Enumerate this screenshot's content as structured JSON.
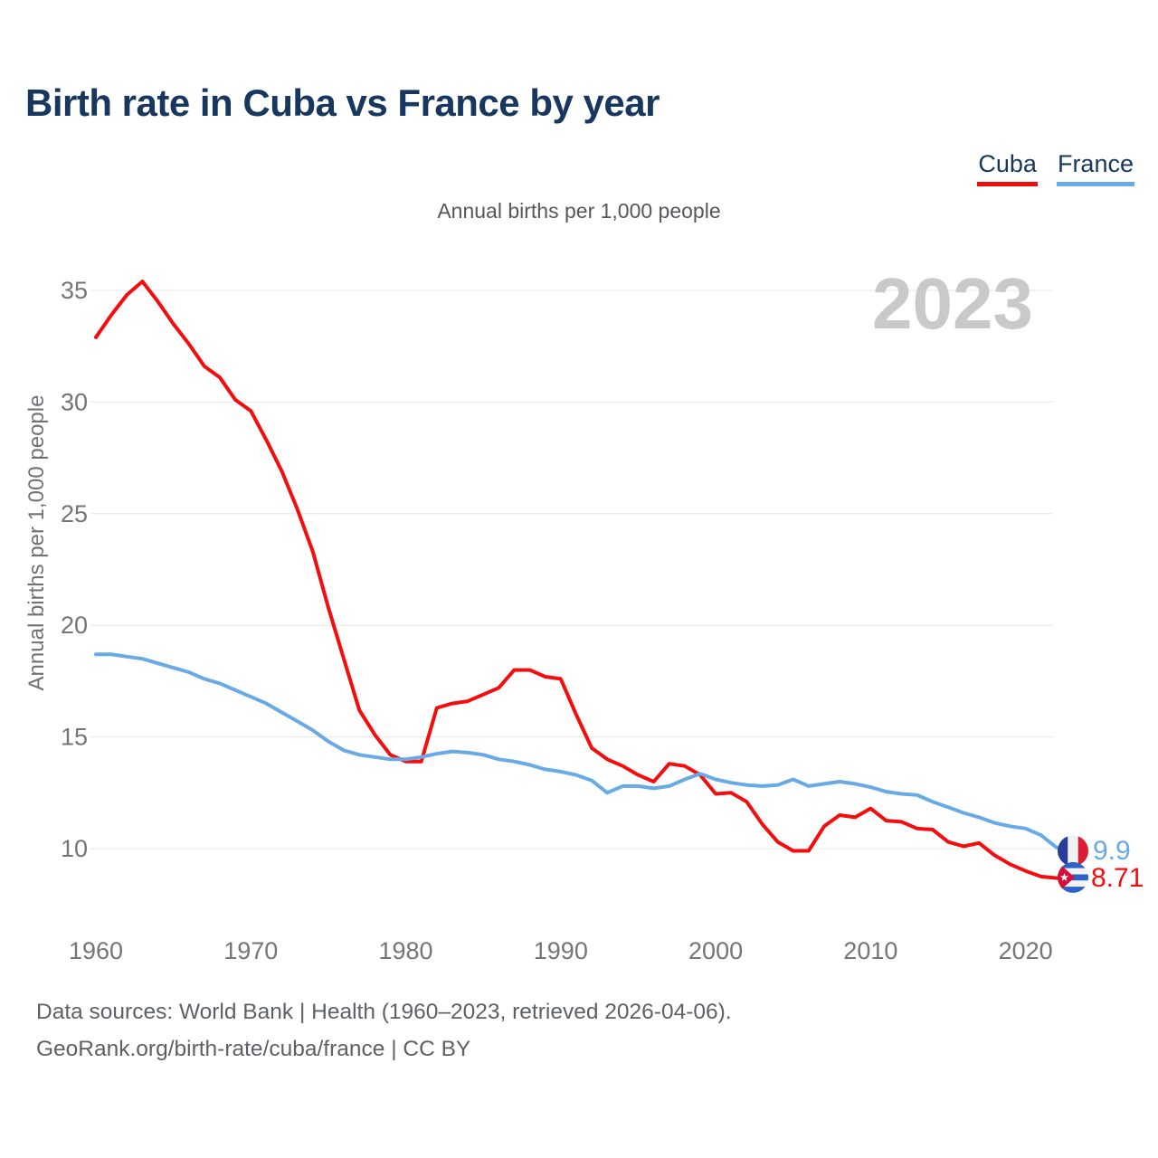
{
  "header": {
    "title": "Birth rate in Cuba vs France by year",
    "subtitle": "Annual births per 1,000 people"
  },
  "legend": {
    "items": [
      {
        "label": "Cuba",
        "color": "#f50d0d"
      },
      {
        "label": "France",
        "color": "#68aae6"
      }
    ]
  },
  "chart_data": {
    "type": "line",
    "title": "Birth rate in Cuba vs France by year",
    "subtitle": "Annual births per 1,000 people",
    "xlabel": "",
    "ylabel": "Annual births per 1,000 people",
    "watermark": "2023",
    "grid": "horizontal",
    "legend_position": "top-right",
    "xlim": [
      1960,
      2023
    ],
    "ylim": [
      8.5,
      36
    ],
    "x_ticks": [
      "1960",
      "1970",
      "1980",
      "1990",
      "2000",
      "2010",
      "2020"
    ],
    "y_ticks": [
      35,
      30,
      25,
      20,
      15,
      10
    ],
    "years": [
      1960,
      1961,
      1962,
      1963,
      1964,
      1965,
      1966,
      1967,
      1968,
      1969,
      1970,
      1971,
      1972,
      1973,
      1974,
      1975,
      1976,
      1977,
      1978,
      1979,
      1980,
      1981,
      1982,
      1983,
      1984,
      1985,
      1986,
      1987,
      1988,
      1989,
      1990,
      1991,
      1992,
      1993,
      1994,
      1995,
      1996,
      1997,
      1998,
      1999,
      2000,
      2001,
      2002,
      2003,
      2004,
      2005,
      2006,
      2007,
      2008,
      2009,
      2010,
      2011,
      2012,
      2013,
      2014,
      2015,
      2016,
      2017,
      2018,
      2019,
      2020,
      2021,
      2022,
      2023
    ],
    "series": [
      {
        "name": "Cuba",
        "color": "#f50d0d",
        "end_label": "8.71",
        "flag_icon": "cuba-flag-icon",
        "values": [
          32.9,
          33.9,
          34.8,
          35.4,
          34.5,
          33.5,
          32.6,
          31.6,
          31.1,
          30.1,
          29.6,
          28.3,
          26.9,
          25.2,
          23.3,
          20.8,
          18.5,
          16.2,
          15.1,
          14.2,
          13.9,
          13.9,
          16.3,
          16.5,
          16.6,
          16.9,
          17.2,
          18.0,
          18.0,
          17.7,
          17.6,
          16.0,
          14.5,
          14.0,
          13.7,
          13.3,
          13.0,
          13.8,
          13.7,
          13.3,
          12.45,
          12.5,
          12.1,
          11.1,
          10.3,
          9.9,
          9.9,
          11.0,
          11.5,
          11.4,
          11.8,
          11.25,
          11.2,
          10.9,
          10.85,
          10.3,
          10.1,
          10.25,
          9.7,
          9.3,
          9.0,
          8.75,
          8.68,
          8.71
        ]
      },
      {
        "name": "France",
        "color": "#68aae6",
        "end_label": "9.9",
        "flag_icon": "france-flag-icon",
        "values": [
          18.7,
          18.7,
          18.6,
          18.5,
          18.3,
          18.1,
          17.9,
          17.6,
          17.4,
          17.1,
          16.8,
          16.5,
          16.1,
          15.7,
          15.3,
          14.8,
          14.4,
          14.2,
          14.1,
          14.0,
          14.0,
          14.1,
          14.25,
          14.35,
          14.3,
          14.2,
          14.0,
          13.9,
          13.75,
          13.55,
          13.45,
          13.3,
          13.05,
          12.5,
          12.8,
          12.8,
          12.7,
          12.8,
          13.1,
          13.35,
          13.1,
          12.95,
          12.85,
          12.8,
          12.85,
          13.1,
          12.8,
          12.9,
          13.0,
          12.9,
          12.75,
          12.55,
          12.45,
          12.4,
          12.1,
          11.85,
          11.6,
          11.4,
          11.15,
          11.0,
          10.9,
          10.6,
          10.05,
          9.9
        ]
      }
    ]
  },
  "footer": {
    "line1": "Data sources: World Bank | Health (1960–2023, retrieved 2026-04-06).",
    "line2": "GeoRank.org/birth-rate/cuba/france | CC BY"
  }
}
